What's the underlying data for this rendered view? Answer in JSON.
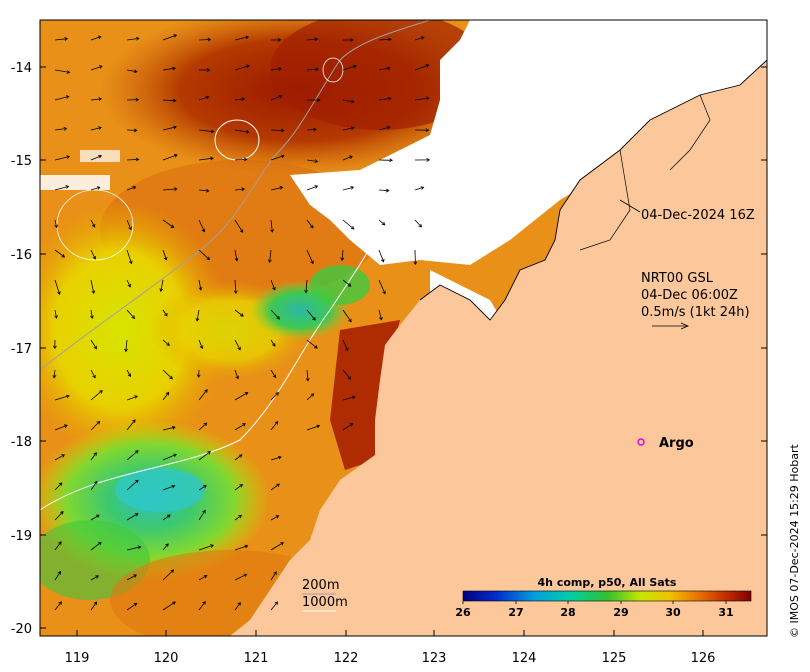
{
  "axes": {
    "x_ticks": [
      "119",
      "120",
      "121",
      "122",
      "123",
      "124",
      "125",
      "126"
    ],
    "y_ticks": [
      "-14",
      "-15",
      "-16",
      "-17",
      "-18",
      "-19",
      "-20"
    ]
  },
  "labels": {
    "timestamp": "04-Dec-2024 16Z",
    "current_source": "NRT00 GSL",
    "current_time": "04-Dec 06:00Z",
    "current_scale": "0.5m/s (1kt 24h)",
    "argo": "Argo",
    "contour_200": "200m",
    "contour_1000": "1000m",
    "credit": "© IMOS 07-Dec-2024 15:29 Hobart"
  },
  "colorbar": {
    "title": "4h comp, p50, All Sats",
    "ticks": [
      "26",
      "27",
      "28",
      "29",
      "30",
      "31"
    ]
  },
  "colors": {
    "land": "#fcc89b",
    "cloud": "#ffffff",
    "argo_marker": "#e000e0"
  }
}
